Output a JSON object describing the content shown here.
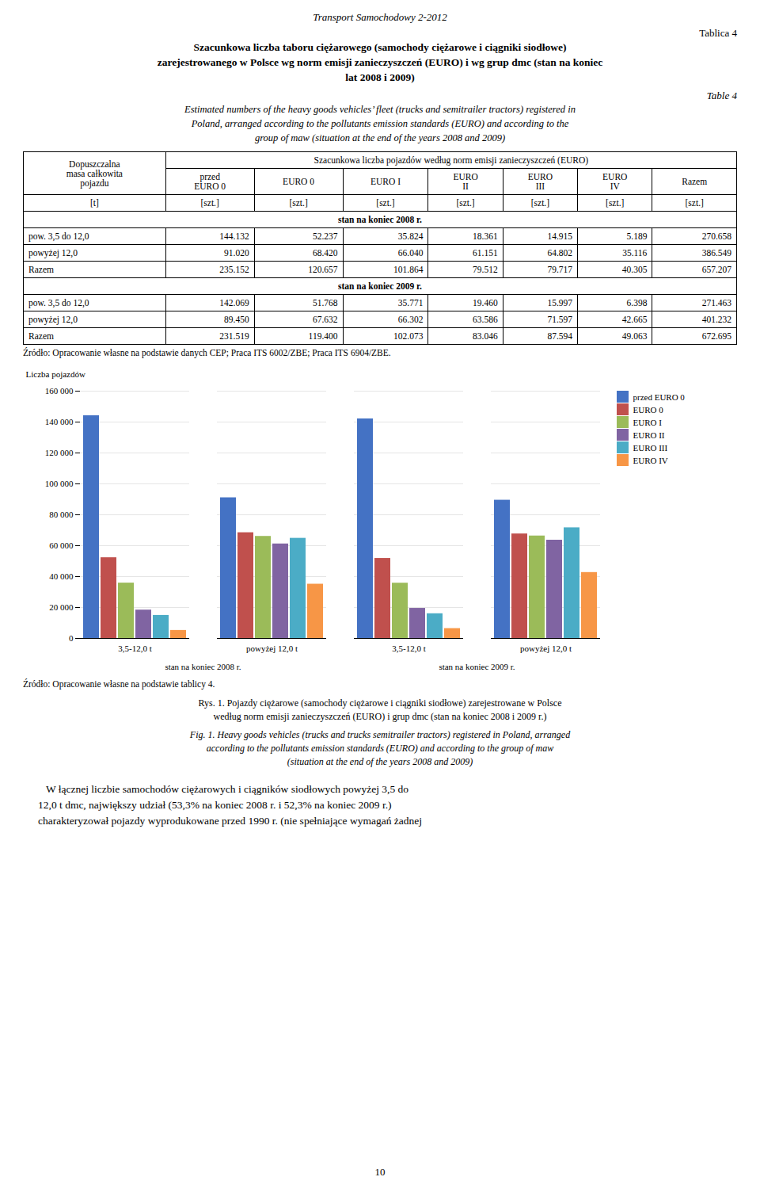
{
  "page": {
    "page_header": "Transport Samochodowy 2-2012",
    "table_number": "Tablica 4",
    "title_pl": "Szacunkowa liczba taboru ciężarowego (samochody ciężarowe i ciągniki siodłowe)\nzarejestrowanego w Polsce wg norm emisji zanieczyszczeń (EURO) i wg grup dmc (stan na koniec\nlat 2008 i 2009)",
    "title_en_label": "Table 4",
    "title_en": "Estimated numbers of the heavy goods vehicles’ fleet (trucks and semitrailer tractors) registered in\nPoland, arranged according to the pollutants emission standards (EURO) and according to the\ngroup of maw (situation at the end of the years 2008 and 2009)",
    "table": {
      "col_left": "Dopuszczalna\nmasa całkowita\npojazdu",
      "col_headers_main": "Szacunkowa liczba pojazdów według norm emisji zanieczyszczeń (EURO)",
      "col_headers": [
        "przed\nEURO 0",
        "EURO 0",
        "EURO I",
        "EURO\nII",
        "EURO\nIII",
        "EURO\nIV",
        "Razem"
      ],
      "col_units": "[t]",
      "col_units_row": [
        "[szt.]",
        "[szt.]",
        "[szt.]",
        "[szt.]",
        "[szt.]",
        "[szt.]",
        "[szt.]"
      ],
      "sections": [
        {
          "label": "stan na koniec 2008 r.",
          "rows": [
            [
              "pow. 3,5 do 12,0",
              "144.132",
              "52.237",
              "35.824",
              "18.361",
              "14.915",
              "5.189",
              "270.658"
            ],
            [
              "powyżej 12,0",
              "91.020",
              "68.420",
              "66.040",
              "61.151",
              "64.802",
              "35.116",
              "386.549"
            ],
            [
              "Razem",
              "235.152",
              "120.657",
              "101.864",
              "79.512",
              "79.717",
              "40.305",
              "657.207"
            ]
          ]
        },
        {
          "label": "stan na koniec 2009 r.",
          "rows": [
            [
              "pow. 3,5 do 12,0",
              "142.069",
              "51.768",
              "35.771",
              "19.460",
              "15.997",
              "6.398",
              "271.463"
            ],
            [
              "powyżej 12,0",
              "89.450",
              "67.632",
              "66.302",
              "63.586",
              "71.597",
              "42.665",
              "401.232"
            ],
            [
              "Razem",
              "231.519",
              "119.400",
              "102.073",
              "83.046",
              "87.594",
              "49.063",
              "672.695"
            ]
          ]
        }
      ]
    },
    "source_table": "Źródło: Opracowanie własne na podstawie danych CEP; Praca ITS 6002/ZBE; Praca ITS 6904/ZBE.",
    "body_text": [
      "   W łącznej liczbie samochodów ciężarowych i ciągników siodłowych powyżej 3,5 do",
      "12,0 t dmc, największy udział (53,3% na koniec 2008 r. i 52,3% na koniec 2009 r.)",
      "charakteryzował pojazdy wyprodukowane przed 1990 r. (nie spełniające wymagań żadnej"
    ],
    "page_number": "10"
  },
  "chart_data": {
    "type": "bar",
    "categories": [
      "3,5-12,0 t",
      "powyżej 12,0 t",
      "3,5-12,0 t",
      "powyżej 12,0 t"
    ],
    "group_labels": [
      "stan na koniec 2008 r.",
      "stan na koniec 2009 r."
    ],
    "series": [
      {
        "name": "przed EURO 0",
        "color": "#4472C4",
        "values": [
          144132,
          91020,
          142069,
          89450
        ]
      },
      {
        "name": "EURO 0",
        "color": "#C0504D",
        "values": [
          52237,
          68420,
          51768,
          67632
        ]
      },
      {
        "name": "EURO I",
        "color": "#9BBB59",
        "values": [
          35824,
          66040,
          35771,
          66302
        ]
      },
      {
        "name": "EURO II",
        "color": "#8064A2",
        "values": [
          18361,
          61151,
          19460,
          63586
        ]
      },
      {
        "name": "EURO III",
        "color": "#4BACC6",
        "values": [
          14915,
          64802,
          15997,
          71597
        ]
      },
      {
        "name": "EURO IV",
        "color": "#F79646",
        "values": [
          5189,
          35116,
          6398,
          42665
        ]
      }
    ],
    "ylabel": "Liczba pojazdów",
    "ylim": [
      0,
      160000
    ],
    "yticks": [
      0,
      {
        "value": 20000,
        "label": "20 000"
      },
      {
        "value": 40000,
        "label": "40 000"
      },
      {
        "value": 60000,
        "label": "60 000"
      },
      {
        "value": 80000,
        "label": "80 000"
      },
      {
        "value": 100000,
        "label": "100 000"
      },
      {
        "value": 120000,
        "label": "120 000"
      },
      {
        "value": 140000,
        "label": "140 000"
      },
      {
        "value": 160000,
        "label": "160 000"
      }
    ],
    "grid": true,
    "legend": "upper right",
    "source": "Źródło: Opracowanie własne na podstawie tablicy 4.",
    "caption": [
      "Rys. 1. Pojazdy ciężarowe (samochody ciężarowe i ciągniki siodłowe) zarejestrowane w Polsce",
      "według norm emisji zanieczyszczeń (EURO) i grup dmc (stan na koniec 2008 i 2009 r.)"
    ],
    "caption_en": [
      "Fig. 1. Heavy goods vehicles (trucks and trucks semitrailer tractors) registered in Poland, arranged",
      "according to the pollutants emission standards (EURO) and according to the group of maw",
      "(situation at the end of the years 2008 and 2009)"
    ]
  }
}
